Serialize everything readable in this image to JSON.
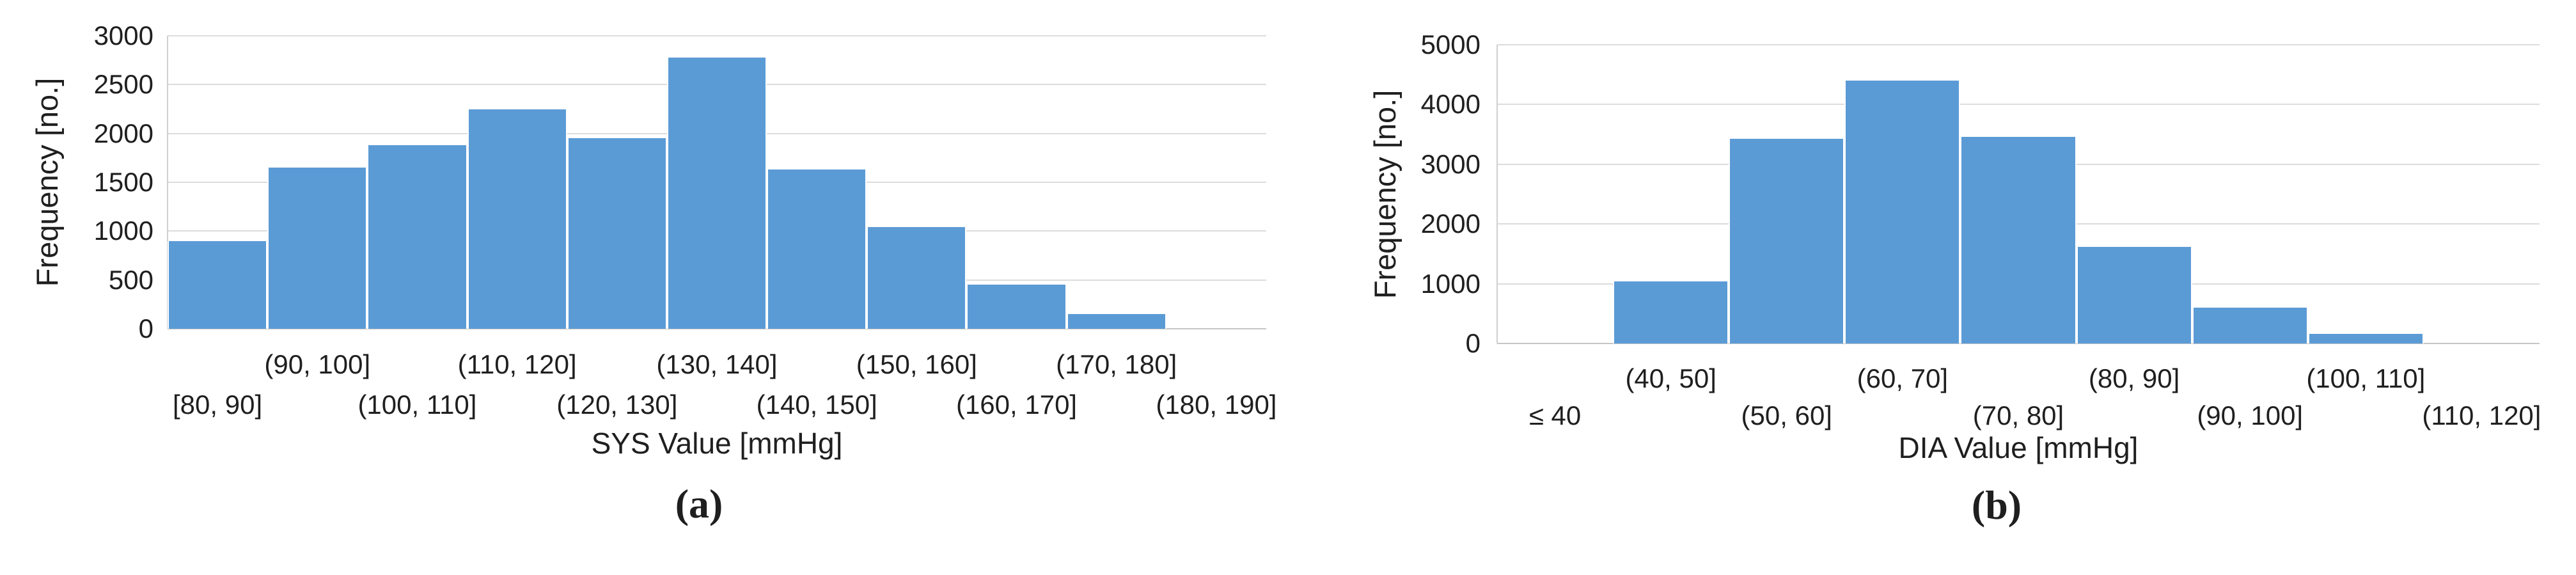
{
  "figure": {
    "background": "#ffffff",
    "captions": [
      "(a)",
      "(b)"
    ]
  },
  "colors": {
    "bar": "#5B9BD5",
    "gridline": "#dcdcdc",
    "axis": "#c6c6c6",
    "text": "#1f1f1f"
  },
  "chart_data": [
    {
      "type": "bar",
      "title": "",
      "xlabel": "SYS Value [mmHg]",
      "ylabel": "Frequency [no.]",
      "caption": "(a)",
      "categories": [
        "[80, 90]",
        "(90, 100]",
        "(100, 110]",
        "(110, 120]",
        "(120, 130]",
        "(130, 140]",
        "(140, 150]",
        "(150, 160]",
        "(160, 170]",
        "(170, 180]",
        "(180, 190]"
      ],
      "values": [
        900,
        1650,
        1880,
        2250,
        1950,
        2780,
        1630,
        1040,
        450,
        150,
        0
      ],
      "ylim": [
        0,
        3000
      ],
      "yticks": [
        0,
        500,
        1000,
        1500,
        2000,
        2500,
        3000
      ],
      "grid": true,
      "legend": "none",
      "label_layout": "staggered-two-rows; odd-index bins on upper row, even-index bins on lower row"
    },
    {
      "type": "bar",
      "title": "",
      "xlabel": "DIA Value [mmHg]",
      "ylabel": "Frequency [no.]",
      "caption": "(b)",
      "categories": [
        "≤ 40",
        "(40, 50]",
        "(50, 60]",
        "(60, 70]",
        "(70, 80]",
        "(80, 90]",
        "(90, 100]",
        "(100, 110]",
        "(110, 120]"
      ],
      "values": [
        0,
        1040,
        3430,
        4400,
        3460,
        1620,
        600,
        160,
        0
      ],
      "ylim": [
        0,
        5000
      ],
      "yticks": [
        0,
        1000,
        2000,
        3000,
        4000,
        5000
      ],
      "grid": true,
      "legend": "none",
      "label_layout": "staggered-two-rows; odd-index bins on upper row, even-index bins on lower row"
    }
  ]
}
